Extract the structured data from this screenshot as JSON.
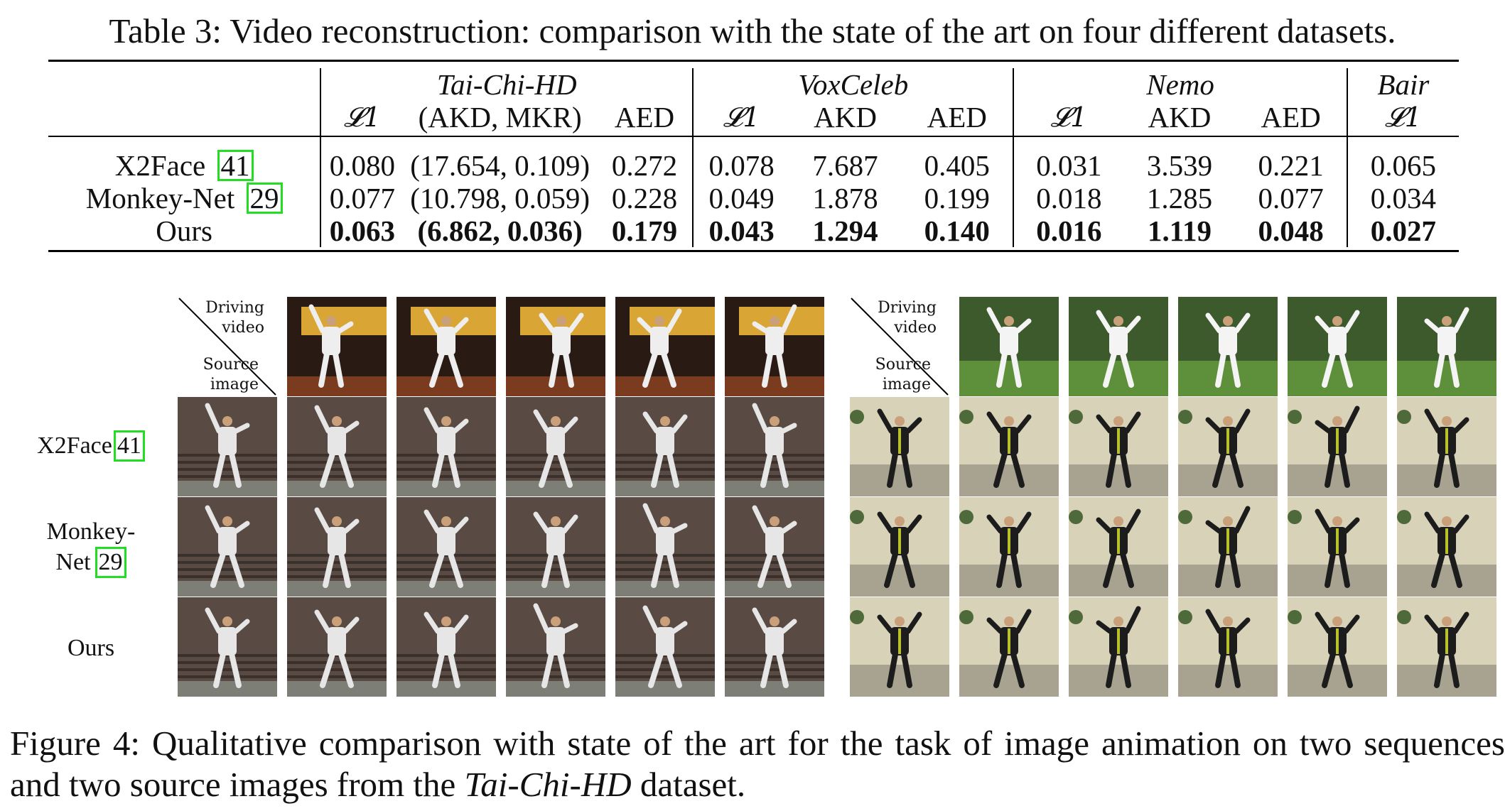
{
  "table_caption": "Table 3: Video reconstruction: comparison with the state of the art on four different datasets.",
  "table": {
    "groups": [
      "Tai-Chi-HD",
      "VoxCeleb",
      "Nemo",
      "Bair"
    ],
    "subheaders": {
      "taichi": [
        "𝓛1",
        "(AKD, MKR)",
        "AED"
      ],
      "vox": [
        "𝓛1",
        "AKD",
        "AED"
      ],
      "nemo": [
        "𝓛1",
        "AKD",
        "AED"
      ],
      "bair": [
        "𝓛1"
      ]
    },
    "rows": [
      {
        "method": "X2Face",
        "ref": "41",
        "values": [
          "0.080",
          "(17.654, 0.109)",
          "0.272",
          "0.078",
          "7.687",
          "0.405",
          "0.031",
          "3.539",
          "0.221",
          "0.065"
        ]
      },
      {
        "method": "Monkey-Net",
        "ref": "29",
        "values": [
          "0.077",
          "(10.798, 0.059)",
          "0.228",
          "0.049",
          "1.878",
          "0.199",
          "0.018",
          "1.285",
          "0.077",
          "0.034"
        ]
      },
      {
        "method": "Ours",
        "ref": "",
        "values": [
          "0.063",
          "(6.862, 0.036)",
          "0.179",
          "0.043",
          "1.294",
          "0.140",
          "0.016",
          "1.119",
          "0.048",
          "0.027"
        ]
      }
    ]
  },
  "figure": {
    "corner_driving": [
      "Driving",
      "video"
    ],
    "corner_source": [
      "Source",
      "image"
    ],
    "row_labels": [
      {
        "text": "X2Face",
        "ref": "41"
      },
      {
        "text_line1": "Monkey-",
        "text_line2": "Net",
        "ref": "29"
      },
      {
        "text": "Ours"
      }
    ]
  },
  "figure_caption": {
    "prefix": "Figure 4:  Qualitative comparison with state of the art for the task of image animation on two sequences and two source images from the ",
    "dataset": "Tai-Chi-HD",
    "suffix": " dataset."
  }
}
